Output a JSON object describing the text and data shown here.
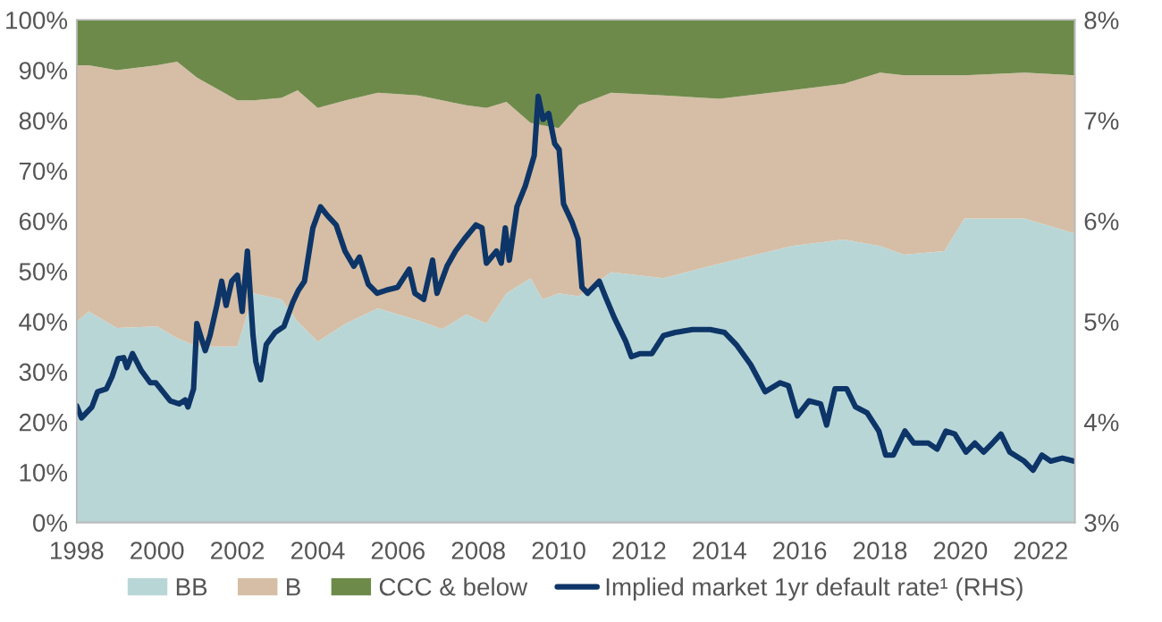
{
  "chart_data": {
    "type": "area",
    "stacked": true,
    "x": [
      1998.0,
      1998.3,
      1999.0,
      2000.0,
      2000.5,
      2001.0,
      2002.0,
      2002.4,
      2003.1,
      2003.5,
      2004.0,
      2004.7,
      2005.5,
      2006.5,
      2007.1,
      2007.7,
      2008.2,
      2008.7,
      2009.3,
      2009.6,
      2010.0,
      2010.5,
      2011.3,
      2012.6,
      2014.0,
      2015.8,
      2017.1,
      2018.0,
      2018.6,
      2019.6,
      2020.1,
      2021.6,
      2022.85
    ],
    "series": [
      {
        "name": "BB",
        "color": "#b9d6d7",
        "values": [
          40,
          42,
          38.7,
          39,
          36.7,
          35,
          35,
          45.6,
          44.4,
          40,
          36,
          39.6,
          42.6,
          40.2,
          38.5,
          41.4,
          39.6,
          45.6,
          48.6,
          44.4,
          45.6,
          45,
          49.8,
          48.6,
          51.5,
          55,
          56.3,
          55,
          53.3,
          54,
          60.5,
          60.5,
          57.5
        ]
      },
      {
        "name": "B",
        "color": "#d5bea5",
        "values": [
          51,
          49,
          51.3,
          52,
          55,
          53.5,
          49,
          38.4,
          40.1,
          46,
          46.5,
          44.4,
          42.9,
          44.8,
          45.5,
          41.6,
          42.9,
          38.1,
          30.9,
          34.6,
          32.9,
          38,
          35.7,
          36.4,
          32.8,
          31,
          31,
          34.5,
          35.7,
          35,
          28.5,
          29,
          31.5
        ]
      },
      {
        "name": "CCC & below",
        "color": "#6e8a4b",
        "values": [
          9,
          9,
          10,
          9,
          8.3,
          11.5,
          16,
          16,
          15.5,
          14,
          17.5,
          16,
          14.5,
          15,
          16,
          17,
          17.5,
          16.3,
          20.5,
          21,
          21.5,
          17,
          14.5,
          15,
          15.7,
          14,
          12.7,
          10.5,
          11,
          11,
          11,
          10.5,
          11
        ]
      },
      {
        "name": "Implied market 1yr default rate¹ (RHS)",
        "type": "line",
        "axis": "y2",
        "color": "#0d3567",
        "x": [
          1998.0,
          1998.12,
          1998.38,
          1998.52,
          1998.74,
          1998.88,
          1999.03,
          1999.17,
          1999.25,
          1999.39,
          1999.61,
          1999.83,
          1999.97,
          2000.33,
          2000.55,
          2000.7,
          2000.77,
          2000.91,
          2000.99,
          2001.2,
          2001.32,
          2001.49,
          2001.61,
          2001.72,
          2001.86,
          2002.0,
          2002.12,
          2002.25,
          2002.39,
          2002.46,
          2002.58,
          2002.72,
          2002.94,
          2003.16,
          2003.38,
          2003.52,
          2003.67,
          2003.88,
          2004.07,
          2004.25,
          2004.46,
          2004.68,
          2004.9,
          2005.04,
          2005.26,
          2005.48,
          2005.7,
          2005.99,
          2006.28,
          2006.42,
          2006.64,
          2006.86,
          2006.97,
          2007.22,
          2007.43,
          2007.65,
          2007.94,
          2008.09,
          2008.2,
          2008.45,
          2008.57,
          2008.67,
          2008.77,
          2008.96,
          2009.17,
          2009.39,
          2009.49,
          2009.61,
          2009.75,
          2009.9,
          2010.01,
          2010.12,
          2010.33,
          2010.48,
          2010.58,
          2010.72,
          2011.01,
          2011.16,
          2011.38,
          2011.67,
          2011.81,
          2012.03,
          2012.32,
          2012.61,
          2012.9,
          2013.33,
          2013.77,
          2014.13,
          2014.42,
          2014.78,
          2015.14,
          2015.51,
          2015.72,
          2015.94,
          2016.23,
          2016.52,
          2016.67,
          2016.88,
          2017.17,
          2017.39,
          2017.68,
          2017.97,
          2018.14,
          2018.33,
          2018.62,
          2018.84,
          2019.2,
          2019.42,
          2019.64,
          2019.86,
          2020.14,
          2020.36,
          2020.58,
          2020.8,
          2021.01,
          2021.23,
          2021.59,
          2021.81,
          2022.03,
          2022.25,
          2022.54,
          2022.83
        ],
        "values": [
          4.16,
          4.04,
          4.15,
          4.3,
          4.33,
          4.45,
          4.63,
          4.64,
          4.54,
          4.68,
          4.51,
          4.39,
          4.39,
          4.21,
          4.18,
          4.22,
          4.15,
          4.33,
          4.98,
          4.71,
          4.86,
          5.16,
          5.4,
          5.16,
          5.4,
          5.46,
          5.1,
          5.7,
          4.86,
          4.6,
          4.42,
          4.77,
          4.89,
          4.95,
          5.19,
          5.31,
          5.4,
          5.93,
          6.14,
          6.05,
          5.96,
          5.7,
          5.55,
          5.64,
          5.37,
          5.28,
          5.31,
          5.34,
          5.52,
          5.28,
          5.22,
          5.61,
          5.28,
          5.55,
          5.7,
          5.82,
          5.96,
          5.93,
          5.58,
          5.7,
          5.58,
          5.93,
          5.61,
          6.14,
          6.35,
          6.65,
          7.24,
          7.01,
          7.07,
          6.77,
          6.71,
          6.17,
          5.99,
          5.82,
          5.34,
          5.28,
          5.4,
          5.25,
          5.04,
          4.8,
          4.65,
          4.68,
          4.68,
          4.86,
          4.89,
          4.92,
          4.92,
          4.89,
          4.77,
          4.57,
          4.3,
          4.39,
          4.36,
          4.06,
          4.21,
          4.18,
          3.97,
          4.33,
          4.33,
          4.15,
          4.09,
          3.91,
          3.67,
          3.67,
          3.91,
          3.79,
          3.79,
          3.73,
          3.91,
          3.88,
          3.7,
          3.79,
          3.7,
          3.79,
          3.88,
          3.7,
          3.61,
          3.52,
          3.67,
          3.61,
          3.64,
          3.61
        ]
      }
    ],
    "xlim": [
      1998,
      2022.85
    ],
    "xticks": [
      1998,
      2000,
      2002,
      2004,
      2006,
      2008,
      2010,
      2012,
      2014,
      2016,
      2018,
      2020,
      2022
    ],
    "ylim": [
      0,
      100
    ],
    "yticks": [
      {
        "value": 0,
        "label": "0%"
      },
      {
        "value": 10,
        "label": "10%"
      },
      {
        "value": 20,
        "label": "20%"
      },
      {
        "value": 30,
        "label": "30%"
      },
      {
        "value": 40,
        "label": "40%"
      },
      {
        "value": 50,
        "label": "50%"
      },
      {
        "value": 60,
        "label": "60%"
      },
      {
        "value": 70,
        "label": "70%"
      },
      {
        "value": 80,
        "label": "80%"
      },
      {
        "value": 90,
        "label": "90%"
      },
      {
        "value": 100,
        "label": "100%"
      }
    ],
    "y2lim": [
      3,
      8
    ],
    "y2ticks": [
      {
        "value": 3,
        "label": "3%"
      },
      {
        "value": 4,
        "label": "4%"
      },
      {
        "value": 5,
        "label": "5%"
      },
      {
        "value": 6,
        "label": "6%"
      },
      {
        "value": 7,
        "label": "7%"
      },
      {
        "value": 8,
        "label": "8%"
      }
    ],
    "legend": "bottom",
    "grid": false
  }
}
